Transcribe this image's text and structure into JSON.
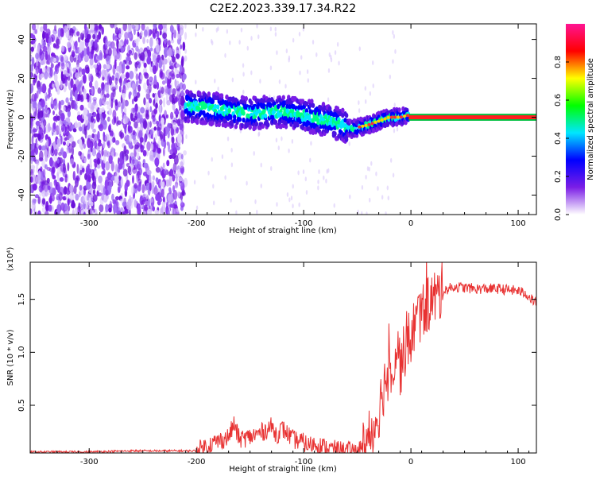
{
  "title": "C2E2.2023.339.17.34.R22",
  "chart_data": [
    {
      "type": "heatmap",
      "xlabel": "Height of straight line (km)",
      "ylabel": "Frequency (Hz)",
      "xlim": [
        -355,
        117
      ],
      "ylim": [
        -50,
        48
      ],
      "xticks": [
        -300,
        -200,
        -100,
        0,
        100
      ],
      "yticks": [
        -40,
        -20,
        0,
        20,
        40
      ],
      "ridge": {
        "x": [
          -210,
          -180,
          -150,
          -120,
          -90,
          -70,
          -55,
          -48,
          -40,
          -30,
          -20,
          -10,
          -3,
          0,
          117
        ],
        "y": [
          6,
          4,
          2,
          3,
          0,
          -3,
          -6,
          -5,
          -4,
          -2,
          0,
          0,
          1,
          0,
          0
        ]
      },
      "noise_region": {
        "xmin": -355,
        "xmax": -210
      },
      "colorbar": {
        "label": "Normalized spectral amplitude",
        "range": [
          0.0,
          1.0
        ],
        "ticks": [
          0.0,
          0.2,
          0.4,
          0.6,
          0.8
        ],
        "colors": [
          "#ffffff",
          "#7b1ee6",
          "#0000ff",
          "#00e6ff",
          "#00ff00",
          "#ffff00",
          "#ff0000",
          "#ff1493"
        ]
      }
    },
    {
      "type": "line",
      "xlabel": "Height of straight line (km)",
      "ylabel": "SNR (10 * v/v)",
      "scale_label": "(x10⁴)",
      "xlim": [
        -355,
        117
      ],
      "ylim": [
        0.05,
        1.85
      ],
      "xticks": [
        -300,
        -200,
        -100,
        0,
        100
      ],
      "yticks": [
        0.5,
        1.0,
        1.5
      ],
      "ytick_labels": [
        "0.5",
        "1.0",
        "1.5"
      ],
      "series": [
        {
          "color": "#e83232",
          "x": [
            -355,
            -300,
            -260,
            -220,
            -200,
            -190,
            -180,
            -170,
            -165,
            -160,
            -150,
            -140,
            -130,
            -125,
            -120,
            -110,
            -100,
            -95,
            -90,
            -80,
            -70,
            -60,
            -50,
            -45,
            -40,
            -35,
            -30,
            -25,
            -20,
            -15,
            -12,
            -10,
            -5,
            0,
            5,
            10,
            20,
            30,
            40,
            60,
            80,
            100,
            108,
            112,
            117
          ],
          "y": [
            0.06,
            0.06,
            0.07,
            0.07,
            0.07,
            0.12,
            0.16,
            0.2,
            0.32,
            0.18,
            0.2,
            0.24,
            0.3,
            0.22,
            0.28,
            0.18,
            0.15,
            0.12,
            0.14,
            0.1,
            0.08,
            0.07,
            0.07,
            0.1,
            0.16,
            0.28,
            0.45,
            0.7,
            0.85,
            0.95,
            1.1,
            0.85,
            1.05,
            1.15,
            1.3,
            1.38,
            1.5,
            1.58,
            1.62,
            1.6,
            1.6,
            1.58,
            1.55,
            1.5,
            1.47
          ]
        }
      ]
    }
  ]
}
